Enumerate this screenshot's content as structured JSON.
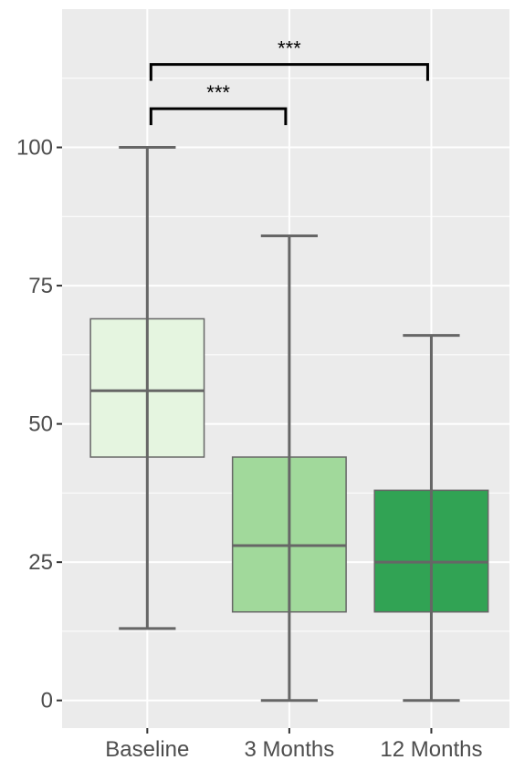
{
  "chart_data": {
    "type": "boxplot",
    "title": "",
    "xlabel": "",
    "ylabel": "",
    "ylim": [
      -5,
      125
    ],
    "y_ticks": [
      0,
      25,
      50,
      75,
      100
    ],
    "y_tick_labels": [
      "0",
      "25",
      "50",
      "75",
      "100"
    ],
    "grid": true,
    "legend": "none",
    "background_color": "#ebebeb",
    "box_outline_color": "#666666",
    "categories": [
      "Baseline",
      "3 Months",
      "12 Months"
    ],
    "boxes": [
      {
        "name": "Baseline",
        "min": 13,
        "q1": 44,
        "median": 56,
        "q3": 69,
        "max": 100,
        "fill": "#e5f5e0"
      },
      {
        "name": "3 Months",
        "min": 0,
        "q1": 16,
        "median": 28,
        "q3": 44,
        "max": 84,
        "fill": "#a1d99b"
      },
      {
        "name": "12 Months",
        "min": 0,
        "q1": 16,
        "median": 25,
        "q3": 38,
        "max": 66,
        "fill": "#31a354"
      }
    ],
    "significance": [
      {
        "from": "Baseline",
        "to": "3 Months",
        "y": 107,
        "label": "***"
      },
      {
        "from": "Baseline",
        "to": "12 Months",
        "y": 115,
        "label": "***"
      }
    ]
  }
}
